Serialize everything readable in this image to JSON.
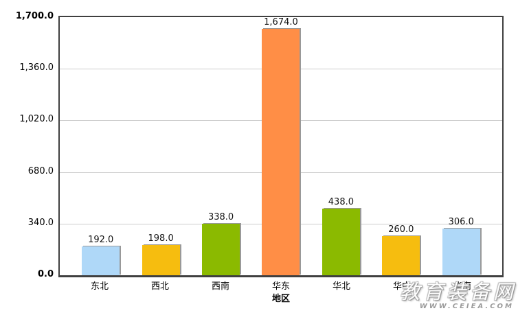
{
  "chart_data": {
    "type": "bar",
    "categories": [
      "东北",
      "西北",
      "西南",
      "华东",
      "华北",
      "华中",
      "华南"
    ],
    "values": [
      192,
      198,
      338,
      1674,
      438,
      260,
      306
    ],
    "value_labels": [
      "192.0",
      "198.0",
      "338.0",
      "1,674.0",
      "438.0",
      "260.0",
      "306.0"
    ],
    "bar_colors": [
      "#AFD8F8",
      "#F6BD0F",
      "#8BBA00",
      "#FF8E46",
      "#8BBA00",
      "#F6BD0F",
      "#AFD8F8"
    ],
    "title": "",
    "xlabel": "地区",
    "ylabel": "",
    "ylim": [
      0,
      1700
    ],
    "y_ticks": [
      0,
      340,
      680,
      1020,
      1360,
      1700
    ],
    "y_tick_labels": [
      "0.0",
      "340.0",
      "680.0",
      "1,020.0",
      "1,360.0",
      "1,700.0"
    ],
    "grid": true,
    "legend": false
  },
  "watermark": {
    "name": "教育装备网",
    "url": "WWW.CEIEA.COM"
  },
  "colors": {
    "background": "#ffffff",
    "axis_border": "#3f3f3f",
    "gridline": "#cccccc",
    "bar_shadow": "#999999",
    "label_text": "#111111"
  }
}
